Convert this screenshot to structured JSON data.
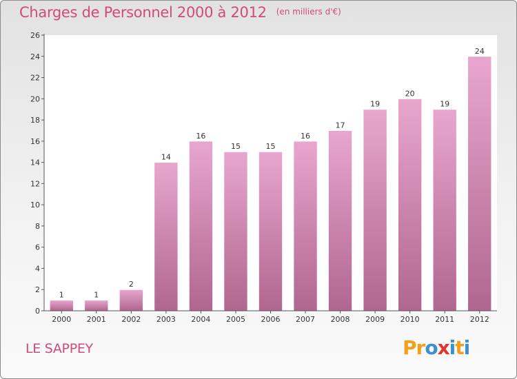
{
  "header": {
    "title": "Charges de Personnel 2000 à 2012",
    "subtitle": "(en milliers d'€)"
  },
  "footer": {
    "commune": "LE SAPPEY",
    "logo_text": "Proxiti",
    "logo_colors": [
      "#f2a01c",
      "#f2a01c",
      "#3d8fd0",
      "#e0342e",
      "#3d8fd0",
      "#f2a01c",
      "#3d8fd0"
    ]
  },
  "colors": {
    "accent": "#d24a78",
    "bar_top": "#e8a6ce",
    "bar_bottom": "#b0678f",
    "plot_background": "#ffffff"
  },
  "chart_data": {
    "type": "bar",
    "title": "Charges de Personnel 2000 à 2012",
    "subtitle": "(en milliers d'€)",
    "categories": [
      "2000",
      "2001",
      "2002",
      "2003",
      "2004",
      "2005",
      "2006",
      "2007",
      "2008",
      "2009",
      "2010",
      "2011",
      "2012"
    ],
    "values": [
      1,
      1,
      2,
      14,
      16,
      15,
      15,
      16,
      17,
      19,
      20,
      19,
      24
    ],
    "ylim": [
      0,
      26
    ],
    "yticks": [
      0,
      2,
      4,
      6,
      8,
      10,
      12,
      14,
      16,
      18,
      20,
      22,
      24,
      26
    ],
    "grid": false,
    "data_labels": true,
    "xlabel": "",
    "ylabel": ""
  }
}
